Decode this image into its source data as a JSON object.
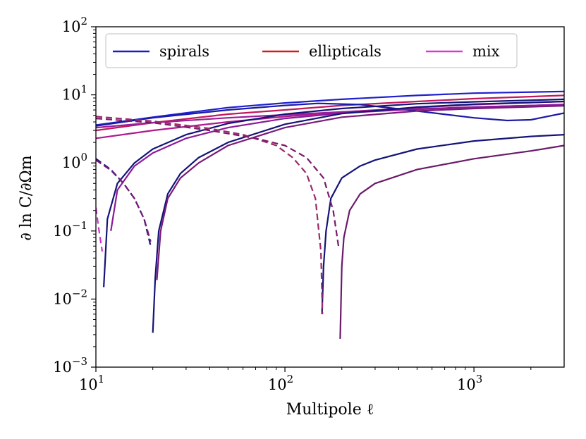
{
  "chart_data": {
    "type": "line",
    "xscale": "log",
    "yscale": "log",
    "xlim": [
      10,
      3000
    ],
    "ylim": [
      0.001,
      100
    ],
    "xlabel": "Multipole ℓ",
    "ylabel": "∂ ln C/∂Ωm",
    "grid": false,
    "legend_position": "top",
    "x_ticks": [
      {
        "value": 10,
        "base": "10",
        "exp": "1"
      },
      {
        "value": 100,
        "base": "10",
        "exp": "2"
      },
      {
        "value": 1000,
        "base": "10",
        "exp": "3"
      }
    ],
    "y_ticks": [
      {
        "value": 0.001,
        "base": "10",
        "exp": "−3"
      },
      {
        "value": 0.01,
        "base": "10",
        "exp": "−2"
      },
      {
        "value": 0.1,
        "base": "10",
        "exp": "−1"
      },
      {
        "value": 1,
        "base": "10",
        "exp": "0"
      },
      {
        "value": 10,
        "base": "10",
        "exp": "1"
      },
      {
        "value": 100,
        "base": "10",
        "exp": "2"
      }
    ],
    "legend": [
      {
        "name": "spirals",
        "color": "#1a1ac8"
      },
      {
        "name": "ellipticals",
        "color": "#d61a1a"
      },
      {
        "name": "mix",
        "color": "#d63ad6"
      }
    ],
    "series": [
      {
        "color": "#1f1fcf",
        "dash": false,
        "points": [
          [
            10,
            3.6
          ],
          [
            20,
            4.7
          ],
          [
            50,
            6.5
          ],
          [
            100,
            7.6
          ],
          [
            200,
            8.6
          ],
          [
            500,
            9.8
          ],
          [
            1000,
            10.6
          ],
          [
            3000,
            11.2
          ]
        ]
      },
      {
        "color": "#c2185b",
        "dash": false,
        "points": [
          [
            10,
            3.0
          ],
          [
            20,
            3.9
          ],
          [
            50,
            5.2
          ],
          [
            100,
            6.0
          ],
          [
            200,
            7.0
          ],
          [
            500,
            8.0
          ],
          [
            1000,
            8.8
          ],
          [
            3000,
            9.8
          ]
        ]
      },
      {
        "color": "#b0188c",
        "dash": false,
        "points": [
          [
            10,
            2.3
          ],
          [
            20,
            3.0
          ],
          [
            50,
            4.0
          ],
          [
            100,
            4.8
          ],
          [
            200,
            5.6
          ],
          [
            500,
            6.5
          ],
          [
            1000,
            7.2
          ],
          [
            3000,
            8.0
          ]
        ]
      },
      {
        "color": "#9a1e9a",
        "dash": false,
        "points": [
          [
            10,
            3.3
          ],
          [
            20,
            3.9
          ],
          [
            50,
            4.6
          ],
          [
            100,
            5.1
          ],
          [
            200,
            5.6
          ],
          [
            500,
            6.1
          ],
          [
            1000,
            6.6
          ],
          [
            3000,
            7.2
          ]
        ]
      },
      {
        "color": "#1a1aa8",
        "dash": false,
        "points": [
          [
            10,
            3.5
          ],
          [
            20,
            4.6
          ],
          [
            50,
            6.0
          ],
          [
            100,
            7.0
          ],
          [
            150,
            7.5
          ],
          [
            250,
            7.2
          ],
          [
            500,
            5.8
          ],
          [
            1000,
            4.6
          ],
          [
            1500,
            4.2
          ],
          [
            2000,
            4.3
          ],
          [
            3000,
            5.4
          ]
        ]
      },
      {
        "color": "#141478",
        "dash": false,
        "points": [
          [
            11,
            0.015
          ],
          [
            11.5,
            0.15
          ],
          [
            13,
            0.5
          ],
          [
            16,
            1.0
          ],
          [
            20,
            1.6
          ],
          [
            30,
            2.6
          ],
          [
            50,
            3.8
          ],
          [
            100,
            5.2
          ],
          [
            200,
            6.3
          ],
          [
            500,
            7.4
          ],
          [
            1000,
            7.9
          ],
          [
            3000,
            8.6
          ]
        ]
      },
      {
        "color": "#8a1a9a",
        "dash": false,
        "points": [
          [
            12,
            0.1
          ],
          [
            13,
            0.4
          ],
          [
            16,
            0.9
          ],
          [
            20,
            1.4
          ],
          [
            30,
            2.3
          ],
          [
            50,
            3.3
          ],
          [
            100,
            4.5
          ],
          [
            200,
            5.4
          ],
          [
            500,
            6.2
          ],
          [
            1000,
            6.6
          ],
          [
            3000,
            7.2
          ]
        ]
      },
      {
        "color": "#141478",
        "dash": false,
        "points": [
          [
            20,
            0.0032
          ],
          [
            20.6,
            0.02
          ],
          [
            21.5,
            0.1
          ],
          [
            24,
            0.35
          ],
          [
            28,
            0.7
          ],
          [
            35,
            1.2
          ],
          [
            50,
            2.0
          ],
          [
            100,
            3.7
          ],
          [
            200,
            5.3
          ],
          [
            500,
            6.6
          ],
          [
            1000,
            7.3
          ],
          [
            3000,
            8.0
          ]
        ]
      },
      {
        "color": "#7a1a7a",
        "dash": false,
        "points": [
          [
            21,
            0.019
          ],
          [
            22,
            0.1
          ],
          [
            24,
            0.3
          ],
          [
            28,
            0.6
          ],
          [
            35,
            1.0
          ],
          [
            50,
            1.8
          ],
          [
            100,
            3.3
          ],
          [
            200,
            4.7
          ],
          [
            500,
            5.8
          ],
          [
            1000,
            6.3
          ],
          [
            3000,
            6.9
          ]
        ]
      },
      {
        "color": "#141478",
        "dash": false,
        "points": [
          [
            157,
            0.006
          ],
          [
            160,
            0.03
          ],
          [
            165,
            0.1
          ],
          [
            175,
            0.3
          ],
          [
            200,
            0.6
          ],
          [
            250,
            0.9
          ],
          [
            300,
            1.1
          ],
          [
            500,
            1.6
          ],
          [
            1000,
            2.1
          ],
          [
            2000,
            2.45
          ],
          [
            3000,
            2.6
          ]
        ]
      },
      {
        "color": "#6a1a6a",
        "dash": false,
        "points": [
          [
            196,
            0.0026
          ],
          [
            200,
            0.03
          ],
          [
            205,
            0.08
          ],
          [
            220,
            0.2
          ],
          [
            250,
            0.35
          ],
          [
            300,
            0.5
          ],
          [
            500,
            0.8
          ],
          [
            1000,
            1.15
          ],
          [
            2000,
            1.5
          ],
          [
            3000,
            1.8
          ]
        ]
      },
      {
        "color": "#9a2a6a",
        "dash": true,
        "points": [
          [
            10,
            4.8
          ],
          [
            20,
            4.1
          ],
          [
            40,
            3.2
          ],
          [
            60,
            2.6
          ],
          [
            90,
            1.8
          ],
          [
            110,
            1.2
          ],
          [
            130,
            0.7
          ],
          [
            145,
            0.3
          ],
          [
            155,
            0.05
          ],
          [
            158,
            0.006
          ]
        ]
      },
      {
        "color": "#7a1a6a",
        "dash": true,
        "points": [
          [
            10,
            4.5
          ],
          [
            20,
            3.9
          ],
          [
            40,
            3.0
          ],
          [
            70,
            2.3
          ],
          [
            100,
            1.8
          ],
          [
            130,
            1.2
          ],
          [
            160,
            0.6
          ],
          [
            180,
            0.2
          ],
          [
            192,
            0.06
          ]
        ]
      },
      {
        "color": "#141478",
        "dash": true,
        "points": [
          [
            10,
            1.15
          ],
          [
            12,
            0.8
          ],
          [
            14,
            0.5
          ],
          [
            16,
            0.3
          ],
          [
            18,
            0.15
          ],
          [
            19.5,
            0.06
          ]
        ]
      },
      {
        "color": "#7a1a7a",
        "dash": true,
        "points": [
          [
            10,
            1.1
          ],
          [
            12,
            0.78
          ],
          [
            14,
            0.5
          ],
          [
            16,
            0.3
          ],
          [
            18,
            0.15
          ],
          [
            19.5,
            0.07
          ]
        ]
      },
      {
        "color": "#cc33cc",
        "dash": true,
        "points": [
          [
            10,
            0.22
          ],
          [
            10.3,
            0.12
          ],
          [
            10.6,
            0.07
          ],
          [
            10.8,
            0.05
          ]
        ]
      }
    ]
  }
}
